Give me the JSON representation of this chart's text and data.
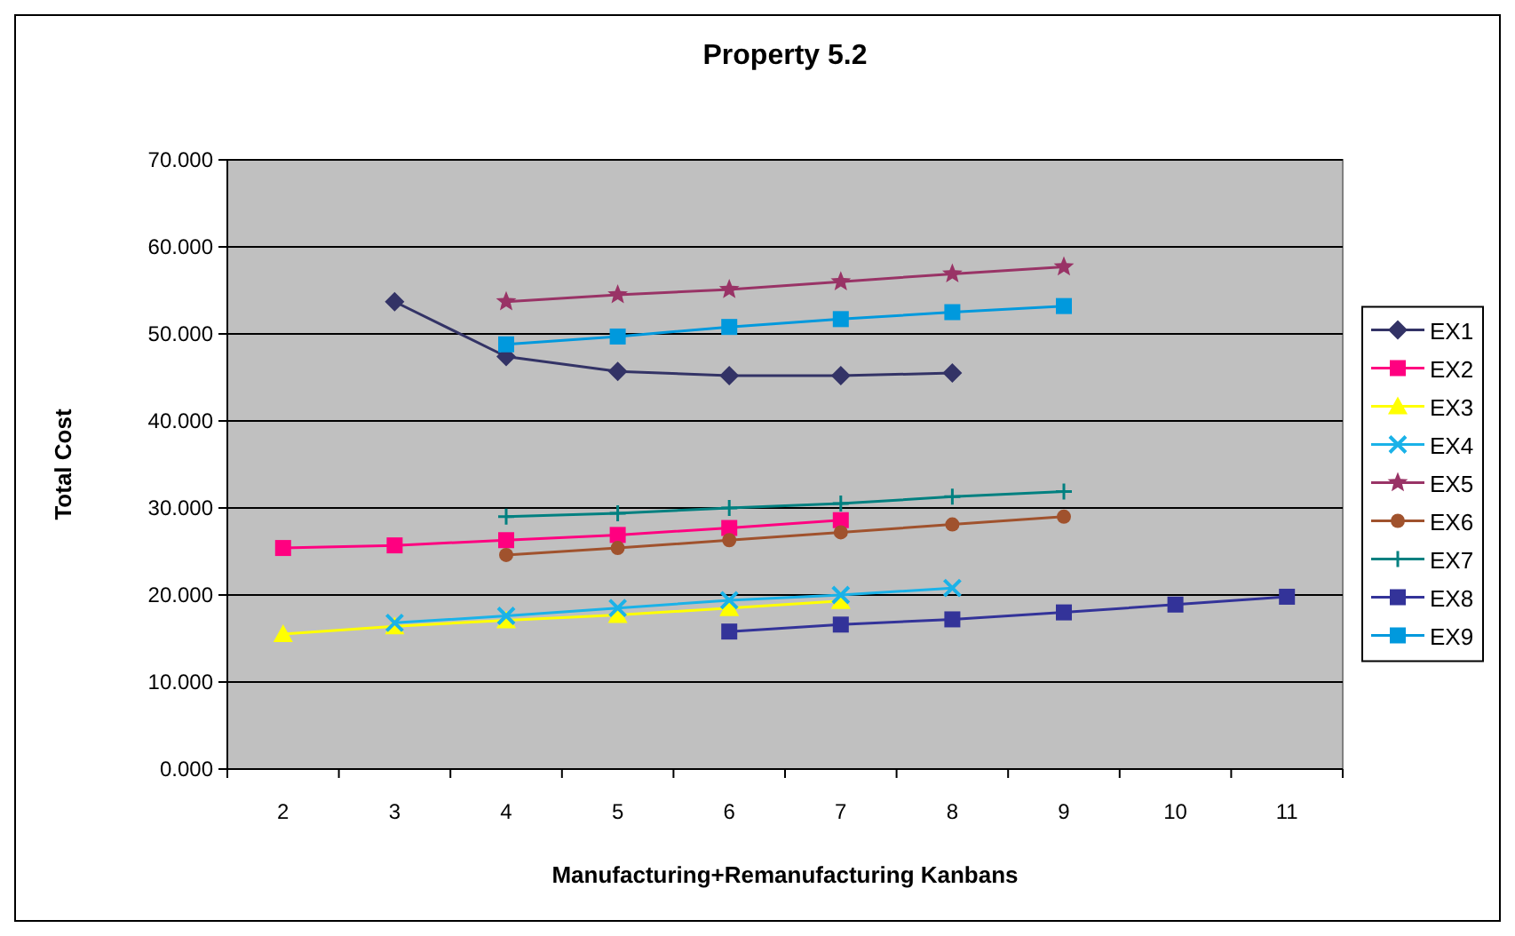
{
  "chart_data": {
    "type": "line",
    "title": "Property 5.2",
    "xlabel": "Manufacturing+Remanufacturing Kanbans",
    "ylabel": "Total Cost",
    "categories": [
      "2",
      "3",
      "4",
      "5",
      "6",
      "7",
      "8",
      "9",
      "10",
      "11"
    ],
    "ylim": [
      0,
      70
    ],
    "yticks": [
      {
        "value": 0,
        "label": "0.000"
      },
      {
        "value": 10,
        "label": "10.000"
      },
      {
        "value": 20,
        "label": "20.000"
      },
      {
        "value": 30,
        "label": "30.000"
      },
      {
        "value": 40,
        "label": "40.000"
      },
      {
        "value": 50,
        "label": "50.000"
      },
      {
        "value": 60,
        "label": "60.000"
      },
      {
        "value": 70,
        "label": "70.000"
      }
    ],
    "grid": "y",
    "legend": "right",
    "series": [
      {
        "name": "EX1",
        "color": "#333366",
        "marker": "diamond",
        "values": [
          null,
          53.7,
          47.4,
          45.7,
          45.2,
          45.2,
          45.5,
          null,
          null,
          null
        ]
      },
      {
        "name": "EX2",
        "color": "#ff0080",
        "marker": "square",
        "values": [
          25.4,
          25.7,
          26.3,
          26.9,
          27.7,
          28.6,
          null,
          null,
          null,
          null
        ]
      },
      {
        "name": "EX3",
        "color": "#ffff00",
        "marker": "triangle",
        "values": [
          15.5,
          16.4,
          17.1,
          17.7,
          18.5,
          19.3,
          null,
          null,
          null,
          null
        ]
      },
      {
        "name": "EX4",
        "color": "#1ab2e8",
        "marker": "cross",
        "values": [
          null,
          16.8,
          17.6,
          18.5,
          19.4,
          20.0,
          20.8,
          null,
          null,
          null
        ]
      },
      {
        "name": "EX5",
        "color": "#993366",
        "marker": "star",
        "values": [
          null,
          null,
          53.7,
          54.5,
          55.1,
          56.0,
          56.9,
          57.7,
          null,
          null
        ]
      },
      {
        "name": "EX6",
        "color": "#a0522d",
        "marker": "circle",
        "values": [
          null,
          null,
          24.6,
          25.4,
          26.3,
          27.2,
          28.1,
          29.0,
          null,
          null
        ]
      },
      {
        "name": "EX7",
        "color": "#008080",
        "marker": "plus",
        "values": [
          null,
          null,
          29.0,
          29.4,
          30.0,
          30.5,
          31.3,
          31.9,
          null,
          null
        ]
      },
      {
        "name": "EX8",
        "color": "#333399",
        "marker": "square",
        "values": [
          null,
          null,
          null,
          null,
          15.8,
          16.6,
          17.2,
          18.0,
          18.9,
          19.8
        ]
      },
      {
        "name": "EX9",
        "color": "#0099dd",
        "marker": "square",
        "values": [
          null,
          null,
          48.8,
          49.7,
          50.8,
          51.7,
          52.5,
          53.2,
          null,
          null
        ]
      }
    ]
  }
}
